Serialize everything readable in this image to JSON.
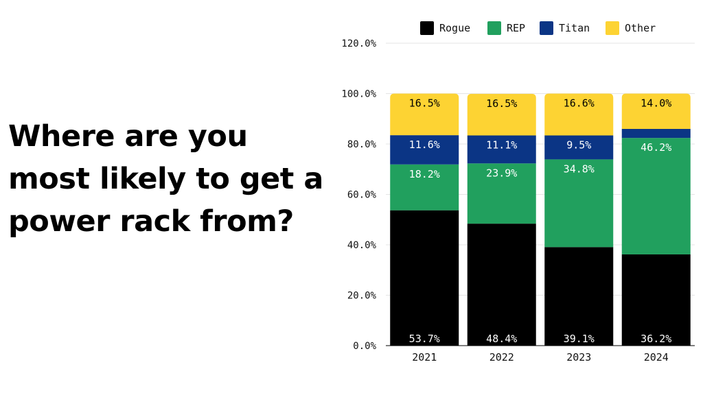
{
  "headline": "Where are you most likely to get a power rack from?",
  "chart_data": {
    "type": "bar",
    "stacked": true,
    "categories": [
      "2021",
      "2022",
      "2023",
      "2024"
    ],
    "series": [
      {
        "name": "Rogue",
        "color": "#000000",
        "label_color": "#ffffff",
        "values": [
          53.7,
          48.4,
          39.1,
          36.2
        ],
        "labels": [
          "53.7%",
          "48.4%",
          "39.1%",
          "36.2%"
        ]
      },
      {
        "name": "REP",
        "color": "#21a05e",
        "label_color": "#ffffff",
        "values": [
          18.2,
          23.9,
          34.8,
          46.2
        ],
        "labels": [
          "18.2%",
          "23.9%",
          "34.8%",
          "46.2%"
        ]
      },
      {
        "name": "Titan",
        "color": "#0b3585",
        "label_color": "#ffffff",
        "values": [
          11.6,
          11.1,
          9.5,
          3.6
        ],
        "labels": [
          "11.6%",
          "11.1%",
          "9.5%",
          ""
        ]
      },
      {
        "name": "Other",
        "color": "#fdd333",
        "label_color": "#000000",
        "values": [
          16.5,
          16.5,
          16.6,
          14.0
        ],
        "labels": [
          "16.5%",
          "16.5%",
          "16.6%",
          "14.0%"
        ]
      }
    ],
    "ylim": [
      0,
      120
    ],
    "yticks": [
      0,
      20,
      40,
      60,
      80,
      100,
      120
    ],
    "ytick_labels": [
      "0.0%",
      "20.0%",
      "40.0%",
      "60.0%",
      "80.0%",
      "100.0%",
      "120.0%"
    ],
    "legend_position": "top",
    "grid": true
  }
}
